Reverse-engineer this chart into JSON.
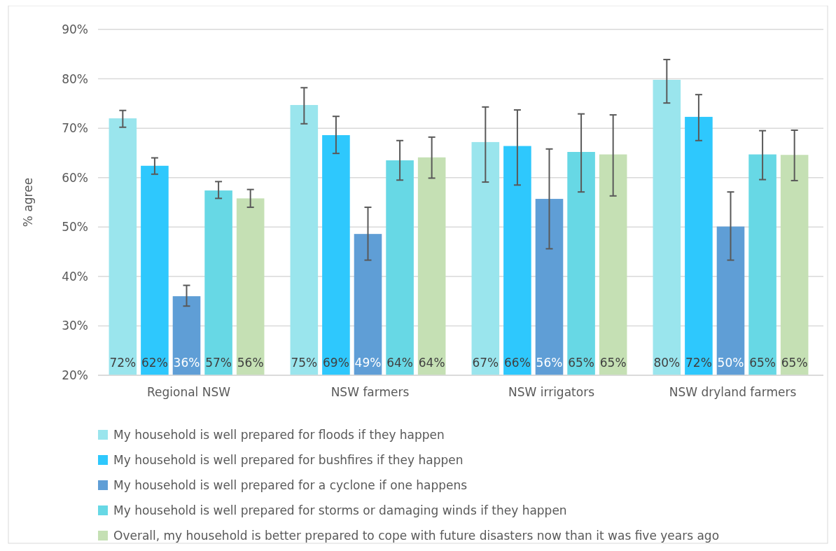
{
  "chart_data": {
    "type": "bar",
    "ylabel": "% agree",
    "categories": [
      "Regional NSW",
      "NSW farmers",
      "NSW irrigators",
      "NSW dryland farmers"
    ],
    "series": [
      {
        "name": "My household is well prepared for floods if they happen",
        "color": "#9ae5ed",
        "values": [
          72.0,
          74.7,
          67.2,
          79.8
        ],
        "errors": [
          [
            70.2,
            73.6
          ],
          [
            70.9,
            78.2
          ],
          [
            59.1,
            74.3
          ],
          [
            75.1,
            83.9
          ]
        ],
        "value_labels": [
          "72%",
          "75%",
          "67%",
          "80%"
        ]
      },
      {
        "name": "My household is well prepared for bushfires if they happen",
        "color": "#2ec8fd",
        "values": [
          62.4,
          68.6,
          66.4,
          72.3
        ],
        "errors": [
          [
            60.7,
            64.0
          ],
          [
            64.9,
            72.4
          ],
          [
            58.5,
            73.7
          ],
          [
            67.5,
            76.8
          ]
        ],
        "value_labels": [
          "62%",
          "69%",
          "66%",
          "72%"
        ]
      },
      {
        "name": "My household is well prepared for a cyclone if one happens",
        "color": "#5f9ed6",
        "values": [
          36.0,
          48.6,
          55.7,
          50.1
        ],
        "errors": [
          [
            34.0,
            38.2
          ],
          [
            43.3,
            54.0
          ],
          [
            45.6,
            65.8
          ],
          [
            43.3,
            57.1
          ]
        ],
        "value_labels": [
          "36%",
          "49%",
          "56%",
          "50%"
        ]
      },
      {
        "name": "My household is well prepared for storms or damaging winds if they happen",
        "color": "#67d8e5",
        "values": [
          57.4,
          63.5,
          65.2,
          64.7
        ],
        "errors": [
          [
            55.8,
            59.2
          ],
          [
            59.5,
            67.5
          ],
          [
            57.1,
            72.9
          ],
          [
            59.6,
            69.5
          ]
        ],
        "value_labels": [
          "57%",
          "64%",
          "65%",
          "65%"
        ]
      },
      {
        "name": "Overall, my household is better prepared to cope with future disasters now than it was five years ago",
        "color": "#c5e0b4",
        "values": [
          55.8,
          64.1,
          64.7,
          64.6
        ],
        "errors": [
          [
            54.0,
            57.6
          ],
          [
            59.9,
            68.2
          ],
          [
            56.3,
            72.7
          ],
          [
            59.4,
            69.6
          ]
        ],
        "value_labels": [
          "56%",
          "64%",
          "65%",
          "65%"
        ]
      }
    ],
    "ylim": [
      20,
      90
    ],
    "yticks": [
      {
        "value": 20,
        "label": "20%"
      },
      {
        "value": 30,
        "label": "30%"
      },
      {
        "value": 40,
        "label": "40%"
      },
      {
        "value": 50,
        "label": "50%"
      },
      {
        "value": 60,
        "label": "60%"
      },
      {
        "value": 70,
        "label": "70%"
      },
      {
        "value": 80,
        "label": "80%"
      },
      {
        "value": 90,
        "label": "90%"
      }
    ],
    "grid": "y",
    "legend": "bottom"
  }
}
